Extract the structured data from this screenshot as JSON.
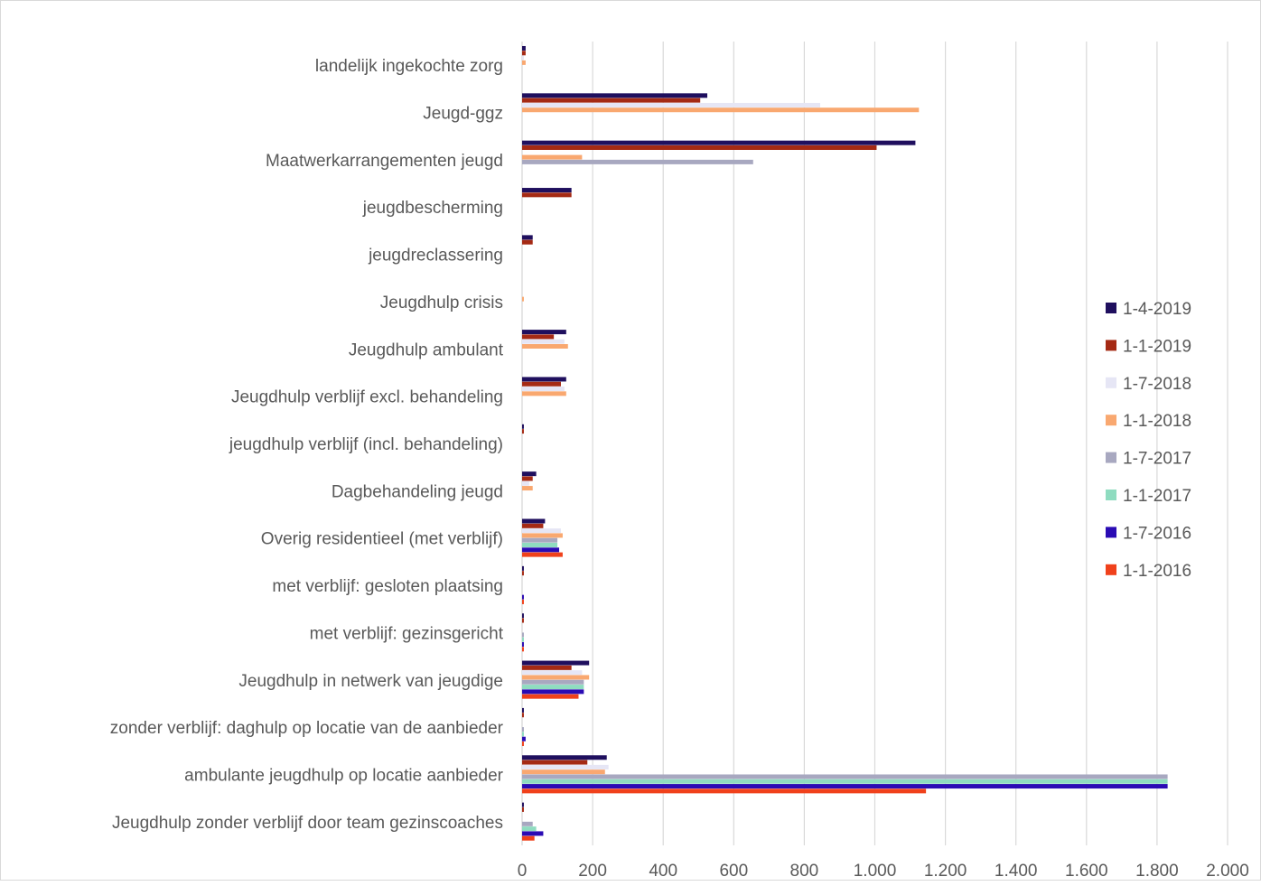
{
  "chart_data": {
    "type": "bar",
    "orientation": "horizontal",
    "categories": [
      "landelijk ingekochte zorg",
      "Jeugd-ggz",
      "Maatwerkarrangementen jeugd",
      "jeugdbescherming",
      "jeugdreclassering",
      "Jeugdhulp crisis",
      "Jeugdhulp ambulant",
      "Jeugdhulp verblijf excl. behandeling",
      "jeugdhulp verblijf (incl. behandeling)",
      "Dagbehandeling jeugd",
      "Overig residentieel (met verblijf)",
      "met verblijf: gesloten plaatsing",
      "met verblijf: gezinsgericht",
      "Jeugdhulp in netwerk van jeugdige",
      "zonder verblijf: daghulp op locatie van de aanbieder",
      "ambulante jeugdhulp op locatie aanbieder",
      "Jeugdhulp zonder verblijf door team gezinscoaches"
    ],
    "series": [
      {
        "name": "1-4-2019",
        "color": "#1f0f5e",
        "values": [
          10,
          525,
          1115,
          140,
          30,
          0,
          125,
          125,
          5,
          40,
          65,
          5,
          5,
          190,
          5,
          240,
          5
        ]
      },
      {
        "name": "1-1-2019",
        "color": "#a52a14",
        "values": [
          10,
          505,
          1005,
          140,
          30,
          0,
          90,
          110,
          5,
          30,
          60,
          5,
          5,
          140,
          5,
          185,
          5
        ]
      },
      {
        "name": "1-7-2018",
        "color": "#e6e6f5",
        "values": [
          5,
          845,
          0,
          0,
          0,
          0,
          120,
          120,
          0,
          20,
          110,
          0,
          0,
          170,
          0,
          245,
          0
        ]
      },
      {
        "name": "1-1-2018",
        "color": "#f9a870",
        "values": [
          10,
          1125,
          170,
          0,
          0,
          5,
          130,
          125,
          0,
          30,
          115,
          0,
          0,
          190,
          0,
          235,
          0
        ]
      },
      {
        "name": "1-7-2017",
        "color": "#a8a8c0",
        "values": [
          0,
          0,
          655,
          0,
          0,
          0,
          0,
          0,
          0,
          0,
          100,
          0,
          5,
          175,
          5,
          1830,
          30
        ]
      },
      {
        "name": "1-1-2017",
        "color": "#8fdcc0",
        "values": [
          0,
          0,
          0,
          0,
          0,
          0,
          0,
          0,
          0,
          0,
          100,
          0,
          5,
          175,
          5,
          1830,
          40
        ]
      },
      {
        "name": "1-7-2016",
        "color": "#2a0bb4",
        "values": [
          0,
          0,
          0,
          0,
          0,
          0,
          0,
          0,
          0,
          0,
          105,
          5,
          5,
          175,
          10,
          1830,
          60
        ]
      },
      {
        "name": "1-1-2016",
        "color": "#f0411b",
        "values": [
          0,
          0,
          0,
          0,
          0,
          0,
          0,
          0,
          0,
          0,
          115,
          5,
          5,
          160,
          5,
          1145,
          35
        ]
      }
    ],
    "xlim": [
      0,
      2000
    ],
    "xticks": [
      "0",
      "200",
      "400",
      "600",
      "800",
      "1.000",
      "1.200",
      "1.400",
      "1.600",
      "1.800",
      "2.000"
    ],
    "legend_order": [
      "1-4-2019",
      "1-1-2019",
      "1-7-2018",
      "1-1-2018",
      "1-7-2017",
      "1-1-2017",
      "1-7-2016",
      "1-1-2016"
    ],
    "grid": "vertical",
    "legend_position": "right",
    "title": "",
    "xlabel": "",
    "ylabel": ""
  }
}
